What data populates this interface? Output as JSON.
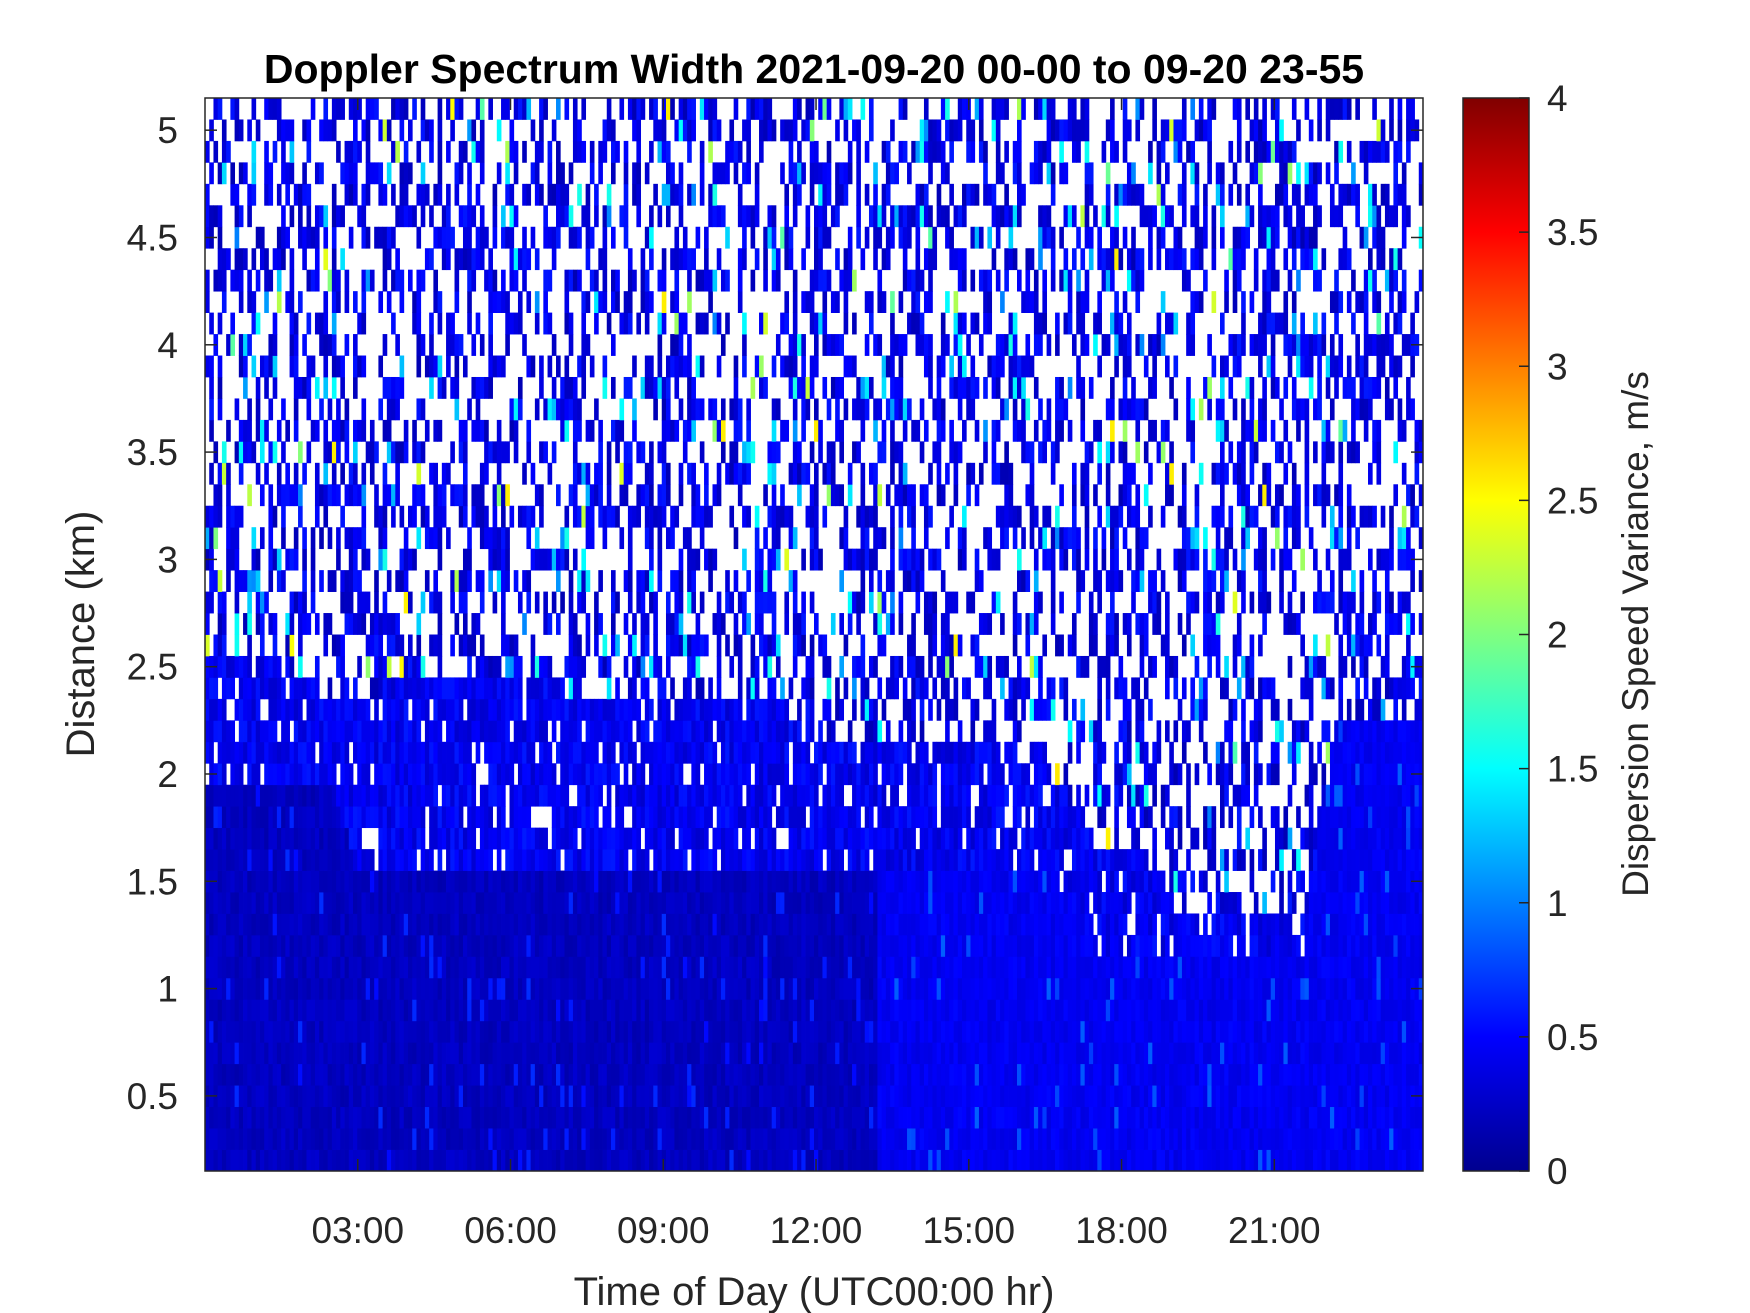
{
  "chart_data": {
    "type": "heatmap",
    "title": "Doppler Spectrum Width 2021-09-20 00-00 to 09-20 23-55",
    "xlabel": "Time of Day (UTC00:00 hr)",
    "ylabel": "Distance (km)",
    "colorbar_label": "Dispersion Speed Variance, m/s",
    "colormap": "jet",
    "xlim_hours": [
      0,
      23.92
    ],
    "ylim_km": [
      0.15,
      5.15
    ],
    "clim": [
      0,
      4
    ],
    "x_ticks": [
      {
        "hour": 3,
        "label": "03:00"
      },
      {
        "hour": 6,
        "label": "06:00"
      },
      {
        "hour": 9,
        "label": "09:00"
      },
      {
        "hour": 12,
        "label": "12:00"
      },
      {
        "hour": 15,
        "label": "15:00"
      },
      {
        "hour": 18,
        "label": "18:00"
      },
      {
        "hour": 21,
        "label": "21:00"
      }
    ],
    "y_ticks": [
      {
        "value": 0.5,
        "label": "0.5"
      },
      {
        "value": 1,
        "label": "1"
      },
      {
        "value": 1.5,
        "label": "1.5"
      },
      {
        "value": 2,
        "label": "2"
      },
      {
        "value": 2.5,
        "label": "2.5"
      },
      {
        "value": 3,
        "label": "3"
      },
      {
        "value": 3.5,
        "label": "3.5"
      },
      {
        "value": 4,
        "label": "4"
      },
      {
        "value": 4.5,
        "label": "4.5"
      },
      {
        "value": 5,
        "label": "5"
      }
    ],
    "colorbar_ticks": [
      {
        "value": 0,
        "label": "0"
      },
      {
        "value": 0.5,
        "label": "0.5"
      },
      {
        "value": 1,
        "label": "1"
      },
      {
        "value": 1.5,
        "label": "1.5"
      },
      {
        "value": 2,
        "label": "2"
      },
      {
        "value": 2.5,
        "label": "2.5"
      },
      {
        "value": 3,
        "label": "3"
      },
      {
        "value": 3.5,
        "label": "3.5"
      },
      {
        "value": 4,
        "label": "4"
      }
    ],
    "background_regime": {
      "description_values": "sparse noisy returns above boundary layer",
      "typical_width_ms": 0.4,
      "fill_fraction": 0.45
    },
    "dense_layer_top_km": [
      {
        "hour": 0,
        "km": 2.55
      },
      {
        "hour": 1.5,
        "km": 2.5
      },
      {
        "hour": 3,
        "km": 2.3
      },
      {
        "hour": 5,
        "km": 2.5
      },
      {
        "hour": 7,
        "km": 2.4
      },
      {
        "hour": 9,
        "km": 2.35
      },
      {
        "hour": 11.5,
        "km": 2.3
      },
      {
        "hour": 12.5,
        "km": 2.1
      },
      {
        "hour": 14,
        "km": 2.1
      },
      {
        "hour": 16.5,
        "km": 2.1
      },
      {
        "hour": 17.5,
        "km": 1.65
      },
      {
        "hour": 18.5,
        "km": 1.6
      },
      {
        "hour": 19,
        "km": 1.4
      },
      {
        "hour": 20,
        "km": 1.3
      },
      {
        "hour": 21.5,
        "km": 1.3
      },
      {
        "hour": 22.2,
        "km": 2.25
      },
      {
        "hour": 23.92,
        "km": 2.25
      }
    ],
    "solid_core_top_km": [
      {
        "hour": 0,
        "km": 1.95
      },
      {
        "hour": 2.5,
        "km": 1.95
      },
      {
        "hour": 3,
        "km": 1.55
      },
      {
        "hour": 5,
        "km": 1.5
      },
      {
        "hour": 9,
        "km": 1.6
      },
      {
        "hour": 13.5,
        "km": 1.55
      },
      {
        "hour": 14.5,
        "km": 1.5
      },
      {
        "hour": 16.5,
        "km": 1.6
      },
      {
        "hour": 17.5,
        "km": 1.2
      },
      {
        "hour": 19,
        "km": 1.15
      },
      {
        "hour": 21.5,
        "km": 1.1
      },
      {
        "hour": 22.2,
        "km": 2.2
      },
      {
        "hour": 23.92,
        "km": 2.2
      }
    ],
    "core_color_regime": [
      {
        "from_hour": 0,
        "to_hour": 13.2,
        "typical_width_ms": 0.25
      },
      {
        "from_hour": 13.2,
        "to_hour": 23.92,
        "typical_width_ms": 0.45
      }
    ]
  }
}
